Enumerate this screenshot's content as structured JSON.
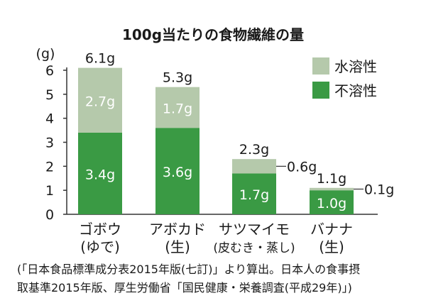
{
  "chart_data": {
    "type": "bar",
    "stacked": true,
    "title": "100g当たりの食物繊維の量",
    "ylabel": "(g)",
    "ylim": [
      0,
      6
    ],
    "yticks": [
      0,
      1,
      2,
      3,
      4,
      5,
      6
    ],
    "grid": false,
    "legend_position": "top-right",
    "categories": [
      {
        "line1": "ゴボウ",
        "line2": "(ゆで)"
      },
      {
        "line1": "アボカド",
        "line2": "(生)"
      },
      {
        "line1": "サツマイモ",
        "line2": "(皮むき・蒸し)"
      },
      {
        "line1": "バナナ",
        "line2": "(生)"
      }
    ],
    "series": [
      {
        "name": "不溶性",
        "color": "#3a9a44",
        "values": [
          3.4,
          3.6,
          1.7,
          1.0
        ],
        "labels": [
          "3.4g",
          "3.6g",
          "1.7g",
          "1.0g"
        ]
      },
      {
        "name": "水溶性",
        "color": "#b5c9ab",
        "values": [
          2.7,
          1.7,
          0.6,
          0.1
        ],
        "labels": [
          "2.7g",
          "1.7g",
          "0.6g",
          "0.1g"
        ]
      }
    ],
    "totals": [
      6.1,
      5.3,
      2.3,
      1.1
    ],
    "total_labels": [
      "6.1g",
      "5.3g",
      "2.3g",
      "1.1g"
    ],
    "legend_order": [
      "水溶性",
      "不溶性"
    ]
  },
  "source_note": {
    "line1": "(「日本食品標準成分表2015年版(七訂)」より算出。日本人の食事摂",
    "line2": "取基準2015年版、厚生労働省「国民健康・栄養調査(平成29年)」)"
  }
}
